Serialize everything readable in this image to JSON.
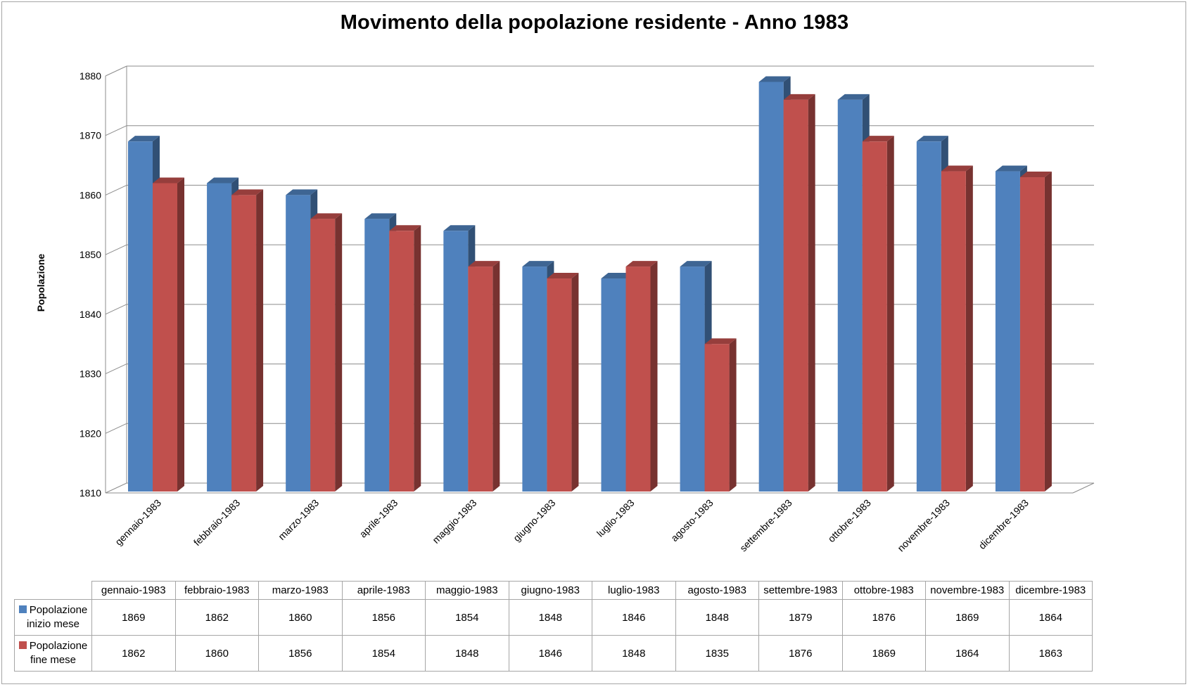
{
  "chart_data": {
    "type": "bar",
    "title": "Movimento della popolazione residente - Anno 1983",
    "ylabel": "Popolazione",
    "xlabel": "",
    "ylim": [
      1810,
      1880
    ],
    "ytick_step": 10,
    "grid": true,
    "categories": [
      "gennaio-1983",
      "febbraio-1983",
      "marzo-1983",
      "aprile-1983",
      "maggio-1983",
      "giugno-1983",
      "luglio-1983",
      "agosto-1983",
      "settembre-1983",
      "ottobre-1983",
      "novembre-1983",
      "dicembre-1983"
    ],
    "series": [
      {
        "name": "Popolazione inizio mese",
        "color": "#4f81bd",
        "values": [
          1869,
          1862,
          1860,
          1856,
          1854,
          1848,
          1846,
          1848,
          1879,
          1876,
          1869,
          1864
        ]
      },
      {
        "name": "Popolazione fine mese",
        "color": "#c0504d",
        "values": [
          1862,
          1860,
          1856,
          1854,
          1848,
          1846,
          1848,
          1835,
          1876,
          1869,
          1864,
          1863
        ]
      }
    ]
  }
}
